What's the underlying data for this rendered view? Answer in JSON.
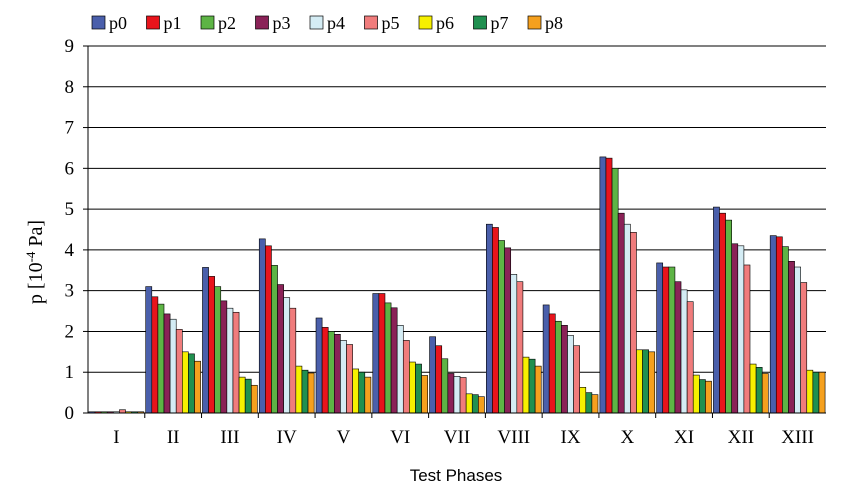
{
  "chart_data": {
    "type": "bar",
    "xlabel": "Test Phases",
    "ylabel": {
      "base": "p [10",
      "exp": "-4",
      "unit": " Pa]"
    },
    "ylim": [
      0,
      9
    ],
    "yticks": [
      0,
      1,
      2,
      3,
      4,
      5,
      6,
      7,
      8,
      9
    ],
    "grid": true,
    "legend_position": "top",
    "categories": [
      "I",
      "II",
      "III",
      "IV",
      "V",
      "VI",
      "VII",
      "VIII",
      "IX",
      "X",
      "XI",
      "XII",
      "XIII"
    ],
    "series": [
      {
        "name": "p0",
        "color": "#4a5fab",
        "values": [
          0.03,
          3.1,
          3.57,
          4.27,
          2.33,
          2.93,
          1.87,
          4.63,
          2.65,
          6.28,
          3.68,
          5.05,
          4.35
        ]
      },
      {
        "name": "p1",
        "color": "#e8141c",
        "values": [
          0.03,
          2.85,
          3.35,
          4.1,
          2.1,
          2.93,
          1.65,
          4.55,
          2.43,
          6.25,
          3.58,
          4.9,
          4.32
        ]
      },
      {
        "name": "p2",
        "color": "#5db445",
        "values": [
          0.03,
          2.67,
          3.1,
          3.62,
          2.0,
          2.7,
          1.33,
          4.23,
          2.25,
          6.0,
          3.58,
          4.73,
          4.08
        ]
      },
      {
        "name": "p3",
        "color": "#8a2257",
        "values": [
          0.03,
          2.43,
          2.75,
          3.15,
          1.93,
          2.58,
          0.97,
          4.05,
          2.15,
          4.9,
          3.22,
          4.15,
          3.72
        ]
      },
      {
        "name": "p4",
        "color": "#d4ecf4",
        "values": [
          0.03,
          2.3,
          2.57,
          2.83,
          1.78,
          2.15,
          0.9,
          3.4,
          1.9,
          4.63,
          3.02,
          4.1,
          3.58
        ]
      },
      {
        "name": "p5",
        "color": "#f07c7c",
        "values": [
          0.08,
          2.05,
          2.47,
          2.57,
          1.68,
          1.78,
          0.87,
          3.22,
          1.65,
          4.43,
          2.73,
          3.63,
          3.2
        ]
      },
      {
        "name": "p6",
        "color": "#f6f000",
        "values": [
          0.03,
          1.5,
          0.88,
          1.15,
          1.08,
          1.25,
          0.47,
          1.37,
          0.63,
          1.55,
          0.93,
          1.2,
          1.05
        ]
      },
      {
        "name": "p7",
        "color": "#209050",
        "values": [
          0.03,
          1.45,
          0.83,
          1.05,
          1.0,
          1.2,
          0.45,
          1.32,
          0.5,
          1.55,
          0.82,
          1.12,
          1.0
        ]
      },
      {
        "name": "p8",
        "color": "#f5a01e",
        "values": [
          0.03,
          1.27,
          0.68,
          0.98,
          0.88,
          0.92,
          0.4,
          1.15,
          0.45,
          1.5,
          0.78,
          0.97,
          1.0
        ]
      }
    ]
  }
}
